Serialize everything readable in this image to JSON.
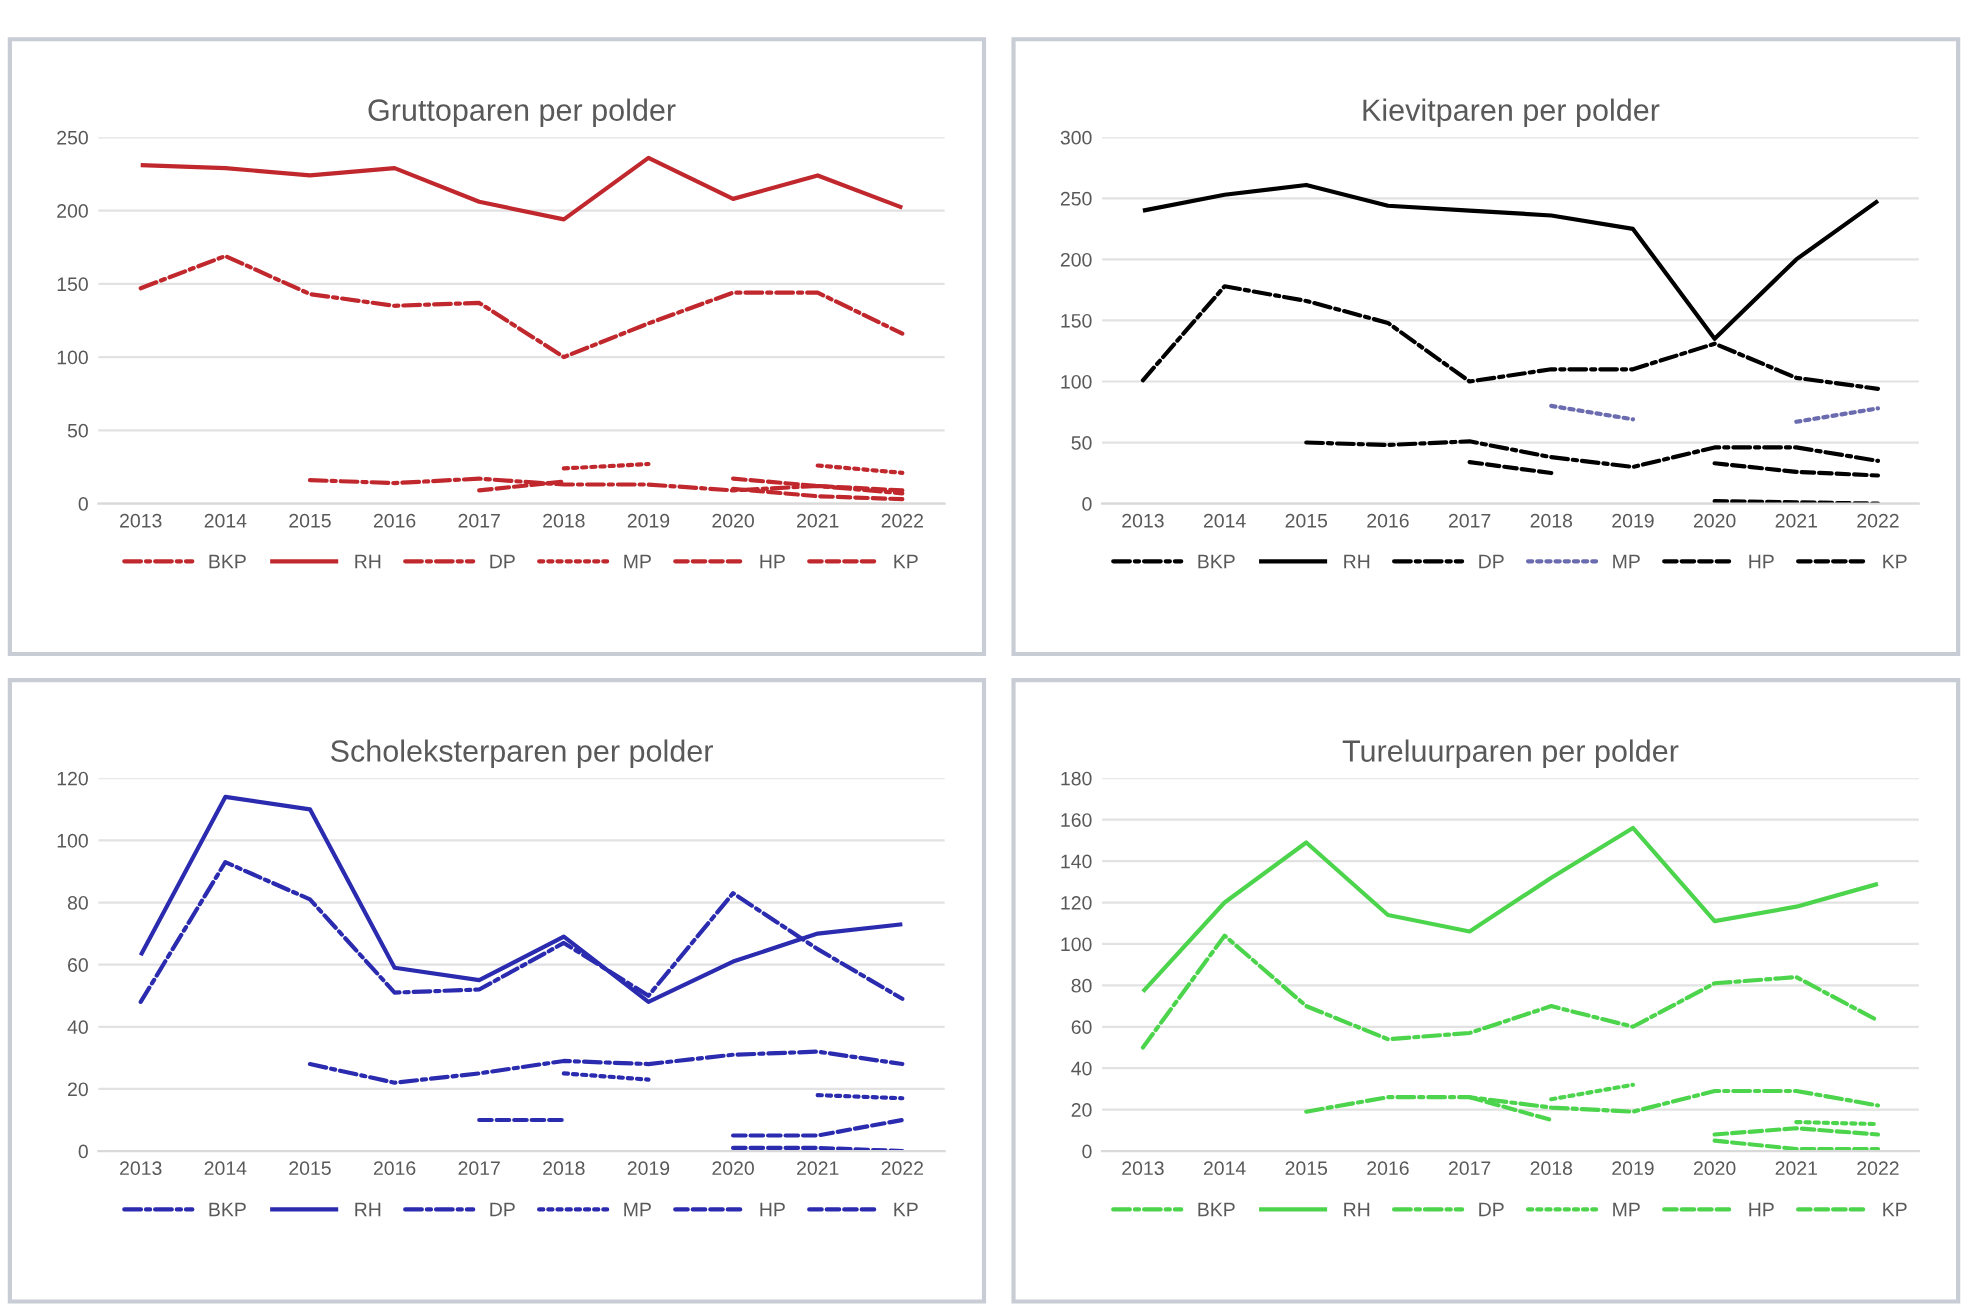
{
  "chart_data": [
    {
      "type": "line",
      "title": "Gruttoparen per polder",
      "categories": [
        "2013",
        "2014",
        "2015",
        "2016",
        "2017",
        "2018",
        "2019",
        "2020",
        "2021",
        "2022"
      ],
      "ylim": [
        0,
        250
      ],
      "yticks": [
        0,
        50,
        100,
        150,
        200,
        250
      ],
      "grid": "y",
      "legend": "bottom",
      "series": [
        {
          "name": "BKP",
          "color": "#c0282d",
          "line_style": "dashdot",
          "values": [
            147,
            169,
            143,
            135,
            137,
            100,
            123,
            144,
            144,
            116
          ]
        },
        {
          "name": "RH",
          "color": "#c0282d",
          "line_style": "solid",
          "values": [
            231,
            229,
            224,
            229,
            206,
            194,
            236,
            208,
            224,
            202
          ]
        },
        {
          "name": "DP",
          "color": "#c0282d",
          "line_style": "dashdot",
          "values": [
            null,
            null,
            16,
            14,
            17,
            13,
            13,
            9,
            12,
            7
          ]
        },
        {
          "name": "MP",
          "color": "#c0282d",
          "line_style": "dotted",
          "values": [
            null,
            null,
            null,
            null,
            null,
            24,
            27,
            null,
            26,
            21
          ]
        },
        {
          "name": "HP",
          "color": "#c0282d",
          "line_style": "dashed",
          "values": [
            null,
            null,
            null,
            null,
            9,
            15,
            null,
            17,
            12,
            9
          ]
        },
        {
          "name": "KP",
          "color": "#c0282d",
          "line_style": "dashed",
          "values": [
            null,
            null,
            null,
            null,
            null,
            null,
            null,
            10,
            5,
            3
          ]
        }
      ]
    },
    {
      "type": "line",
      "title": "Kievitparen per polder",
      "categories": [
        "2013",
        "2014",
        "2015",
        "2016",
        "2017",
        "2018",
        "2019",
        "2020",
        "2021",
        "2022"
      ],
      "ylim": [
        0,
        300
      ],
      "yticks": [
        0,
        50,
        100,
        150,
        200,
        250,
        300
      ],
      "grid": "y",
      "legend": "bottom",
      "series": [
        {
          "name": "BKP",
          "color": "#000000",
          "line_style": "dashdot",
          "values": [
            101,
            178,
            166,
            148,
            100,
            110,
            110,
            131,
            103,
            94
          ]
        },
        {
          "name": "RH",
          "color": "#000000",
          "line_style": "solid",
          "values": [
            240,
            253,
            261,
            244,
            240,
            236,
            225,
            135,
            200,
            248
          ]
        },
        {
          "name": "DP",
          "color": "#000000",
          "line_style": "dashdot",
          "values": [
            null,
            null,
            50,
            48,
            51,
            38,
            30,
            46,
            46,
            35
          ]
        },
        {
          "name": "MP",
          "color": "#6b6bb0",
          "line_style": "dotted",
          "values": [
            null,
            null,
            null,
            null,
            null,
            80,
            69,
            null,
            67,
            78
          ]
        },
        {
          "name": "HP",
          "color": "#000000",
          "line_style": "dashed",
          "values": [
            null,
            null,
            null,
            null,
            34,
            25,
            null,
            33,
            26,
            23
          ]
        },
        {
          "name": "KP",
          "color": "#000000",
          "line_style": "dashed",
          "values": [
            null,
            null,
            null,
            null,
            null,
            null,
            null,
            2,
            1,
            0
          ]
        }
      ]
    },
    {
      "type": "line",
      "title": "Scholeksterparen per polder",
      "categories": [
        "2013",
        "2014",
        "2015",
        "2016",
        "2017",
        "2018",
        "2019",
        "2020",
        "2021",
        "2022"
      ],
      "ylim": [
        0,
        120
      ],
      "yticks": [
        0,
        20,
        40,
        60,
        80,
        100,
        120
      ],
      "grid": "y",
      "legend": "bottom",
      "series": [
        {
          "name": "BKP",
          "color": "#2b2bb0",
          "line_style": "dashdot",
          "values": [
            48,
            93,
            81,
            51,
            52,
            67,
            50,
            83,
            65,
            49
          ]
        },
        {
          "name": "RH",
          "color": "#2b2bb0",
          "line_style": "solid",
          "values": [
            63,
            114,
            110,
            59,
            55,
            69,
            48,
            61,
            70,
            73
          ]
        },
        {
          "name": "DP",
          "color": "#2b2bb0",
          "line_style": "dashdot",
          "values": [
            null,
            null,
            28,
            22,
            25,
            29,
            28,
            31,
            32,
            28
          ]
        },
        {
          "name": "MP",
          "color": "#2b2bb0",
          "line_style": "dotted",
          "values": [
            null,
            null,
            null,
            null,
            null,
            25,
            23,
            null,
            18,
            17
          ]
        },
        {
          "name": "HP",
          "color": "#2b2bb0",
          "line_style": "dashed",
          "values": [
            null,
            null,
            null,
            null,
            10,
            10,
            null,
            5,
            5,
            10
          ]
        },
        {
          "name": "KP",
          "color": "#2b2bb0",
          "line_style": "dashed",
          "values": [
            null,
            null,
            null,
            null,
            null,
            null,
            null,
            1,
            1,
            0
          ]
        }
      ]
    },
    {
      "type": "line",
      "title": "Tureluurparen per polder",
      "categories": [
        "2013",
        "2014",
        "2015",
        "2016",
        "2017",
        "2018",
        "2019",
        "2020",
        "2021",
        "2022"
      ],
      "ylim": [
        0,
        180
      ],
      "yticks": [
        0,
        20,
        40,
        60,
        80,
        100,
        120,
        140,
        160,
        180
      ],
      "grid": "y",
      "legend": "bottom",
      "series": [
        {
          "name": "BKP",
          "color": "#4cd44c",
          "line_style": "dashdot",
          "values": [
            50,
            104,
            70,
            54,
            57,
            70,
            60,
            81,
            84,
            63
          ]
        },
        {
          "name": "RH",
          "color": "#4cd44c",
          "line_style": "solid",
          "values": [
            77,
            120,
            149,
            114,
            106,
            132,
            156,
            111,
            118,
            129
          ]
        },
        {
          "name": "DP",
          "color": "#4cd44c",
          "line_style": "dashdot",
          "values": [
            null,
            null,
            19,
            26,
            26,
            21,
            19,
            29,
            29,
            22
          ]
        },
        {
          "name": "MP",
          "color": "#4cd44c",
          "line_style": "dotted",
          "values": [
            null,
            null,
            null,
            null,
            null,
            25,
            32,
            null,
            14,
            13
          ]
        },
        {
          "name": "HP",
          "color": "#4cd44c",
          "line_style": "dashed",
          "values": [
            null,
            null,
            null,
            null,
            26,
            15,
            null,
            8,
            11,
            8
          ]
        },
        {
          "name": "KP",
          "color": "#4cd44c",
          "line_style": "dashed",
          "values": [
            null,
            null,
            null,
            null,
            null,
            null,
            null,
            5,
            1,
            1
          ]
        }
      ]
    }
  ]
}
